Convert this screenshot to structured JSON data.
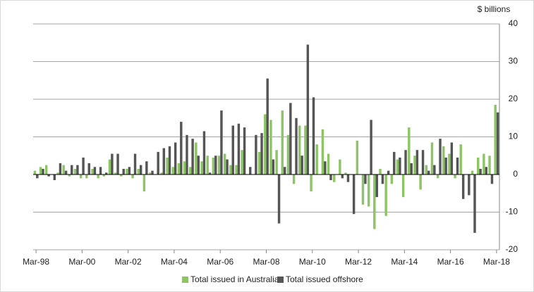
{
  "chart_data": {
    "type": "bar",
    "y_label": "$ billions",
    "categories": [
      "Mar-98",
      null,
      null,
      null,
      null,
      null,
      null,
      null,
      "Mar-00",
      null,
      null,
      null,
      null,
      null,
      null,
      null,
      "Mar-02",
      null,
      null,
      null,
      null,
      null,
      null,
      null,
      "Mar-04",
      null,
      null,
      null,
      null,
      null,
      null,
      null,
      "Mar-06",
      null,
      null,
      null,
      null,
      null,
      null,
      null,
      "Mar-08",
      null,
      null,
      null,
      null,
      null,
      null,
      null,
      "Mar-10",
      null,
      null,
      null,
      null,
      null,
      null,
      null,
      "Mar-12",
      null,
      null,
      null,
      null,
      null,
      null,
      null,
      "Mar-14",
      null,
      null,
      null,
      null,
      null,
      null,
      null,
      "Mar-16",
      null,
      null,
      null,
      null,
      null,
      null,
      null,
      "Mar-18"
    ],
    "series": [
      {
        "name": "Total issued in Australia",
        "color": "#8dc566",
        "values": [
          1,
          2,
          2.5,
          0,
          0.5,
          2.5,
          -0.5,
          1.5,
          -1,
          -1,
          1.5,
          -1,
          -0.5,
          4,
          0.5,
          -0.5,
          1.5,
          -1,
          1.5,
          -4.5,
          0.5,
          0,
          0.5,
          4.5,
          2,
          3,
          3.5,
          2,
          8.5,
          3.5,
          5,
          4.5,
          5,
          5.5,
          2.5,
          2.5,
          6.5,
          0,
          0,
          6,
          16,
          14.5,
          6.5,
          17,
          10.5,
          -2.5,
          13,
          13,
          -4.5,
          8,
          12,
          5.5,
          -2,
          4,
          0.5,
          0,
          9,
          -8,
          -8.5,
          -14.5,
          1.5,
          -11,
          -2.5,
          4,
          -6,
          12.5,
          5,
          -4,
          2.5,
          8.5,
          -1,
          7.5,
          5.5,
          -1,
          8,
          0,
          1,
          4.5,
          5.5,
          5,
          18.5
        ]
      },
      {
        "name": "Total issued offshore",
        "color": "#555555",
        "values": [
          -1,
          1.5,
          -0.5,
          -1.5,
          3,
          1,
          2.5,
          2.5,
          4.5,
          3,
          2,
          2,
          0.5,
          5.5,
          5.5,
          1.5,
          2,
          5.5,
          2.5,
          3.5,
          1,
          6,
          7,
          7.5,
          8.5,
          14,
          10.5,
          9.5,
          5,
          11.5,
          0.5,
          5,
          17,
          4,
          13,
          13.5,
          12.5,
          2,
          10.5,
          11,
          25.5,
          4,
          -13,
          2,
          19,
          15,
          5,
          34.5,
          20.5,
          0,
          3.5,
          -1.5,
          0,
          -1,
          -2,
          -10.5,
          0,
          -2.5,
          14.5,
          -6,
          -2.5,
          1,
          6,
          4.5,
          6.5,
          3,
          6.5,
          6.5,
          1,
          2.5,
          9.5,
          4.5,
          8.5,
          4.5,
          -6.5,
          -5.5,
          -15.5,
          1.5,
          2,
          -2.5,
          16.5
        ]
      }
    ],
    "ylim": [
      -20,
      40
    ],
    "yticks": [
      -20,
      -10,
      0,
      10,
      20,
      30,
      40
    ],
    "grid": true
  }
}
